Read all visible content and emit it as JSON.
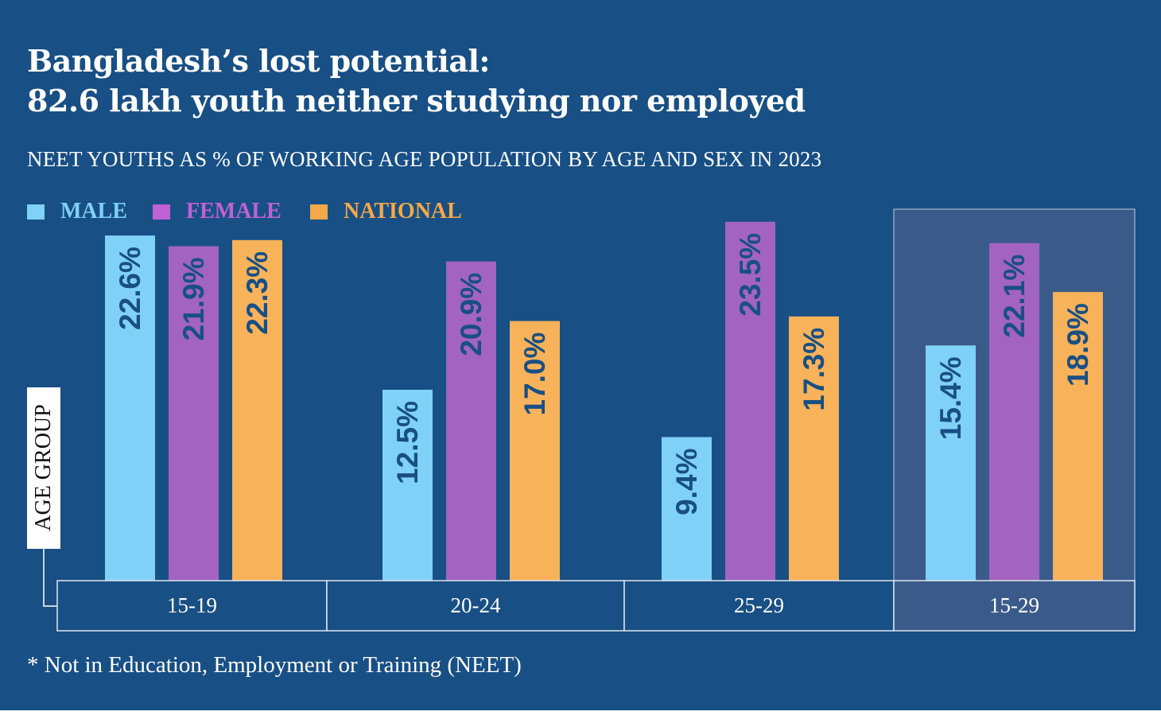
{
  "chart_data": {
    "type": "bar",
    "title": "Bangladesh’s lost potential:",
    "title_line2": "82.6 lakh youth neither studying nor employed",
    "subtitle": "NEET YOUTHS AS % OF WORKING AGE POPULATION BY AGE AND SEX IN 2023",
    "axis_label": "AGE GROUP",
    "note": "* Not in Education, Employment or Training (NEET)",
    "categories": [
      "15-19",
      "20-24",
      "25-29",
      "15-29"
    ],
    "highlighted_category": "15-29",
    "ylim": [
      0,
      25
    ],
    "series": [
      {
        "name": "MALE",
        "color": "#7fd1f7",
        "values": [
          22.6,
          12.5,
          9.4,
          15.4
        ],
        "labels": [
          "22.6%",
          "12.5%",
          "9.4%",
          "15.4%"
        ]
      },
      {
        "name": "FEMALE",
        "color": "#a363c1",
        "legend_color": "#c061d4",
        "values": [
          21.9,
          20.9,
          23.5,
          22.1
        ],
        "labels": [
          "21.9%",
          "20.9%",
          "23.5%",
          "22.1%"
        ]
      },
      {
        "name": "NATIONAL",
        "color": "#f7b25a",
        "legend_color": "#f5a848",
        "values": [
          22.3,
          17.0,
          17.3,
          18.9
        ],
        "labels": [
          "22.3%",
          "17.0%",
          "17.3%",
          "18.9%"
        ]
      }
    ],
    "colors": {
      "background": "#184f85",
      "highlight": "#3a5b8a",
      "label_text": "#184f85"
    }
  }
}
